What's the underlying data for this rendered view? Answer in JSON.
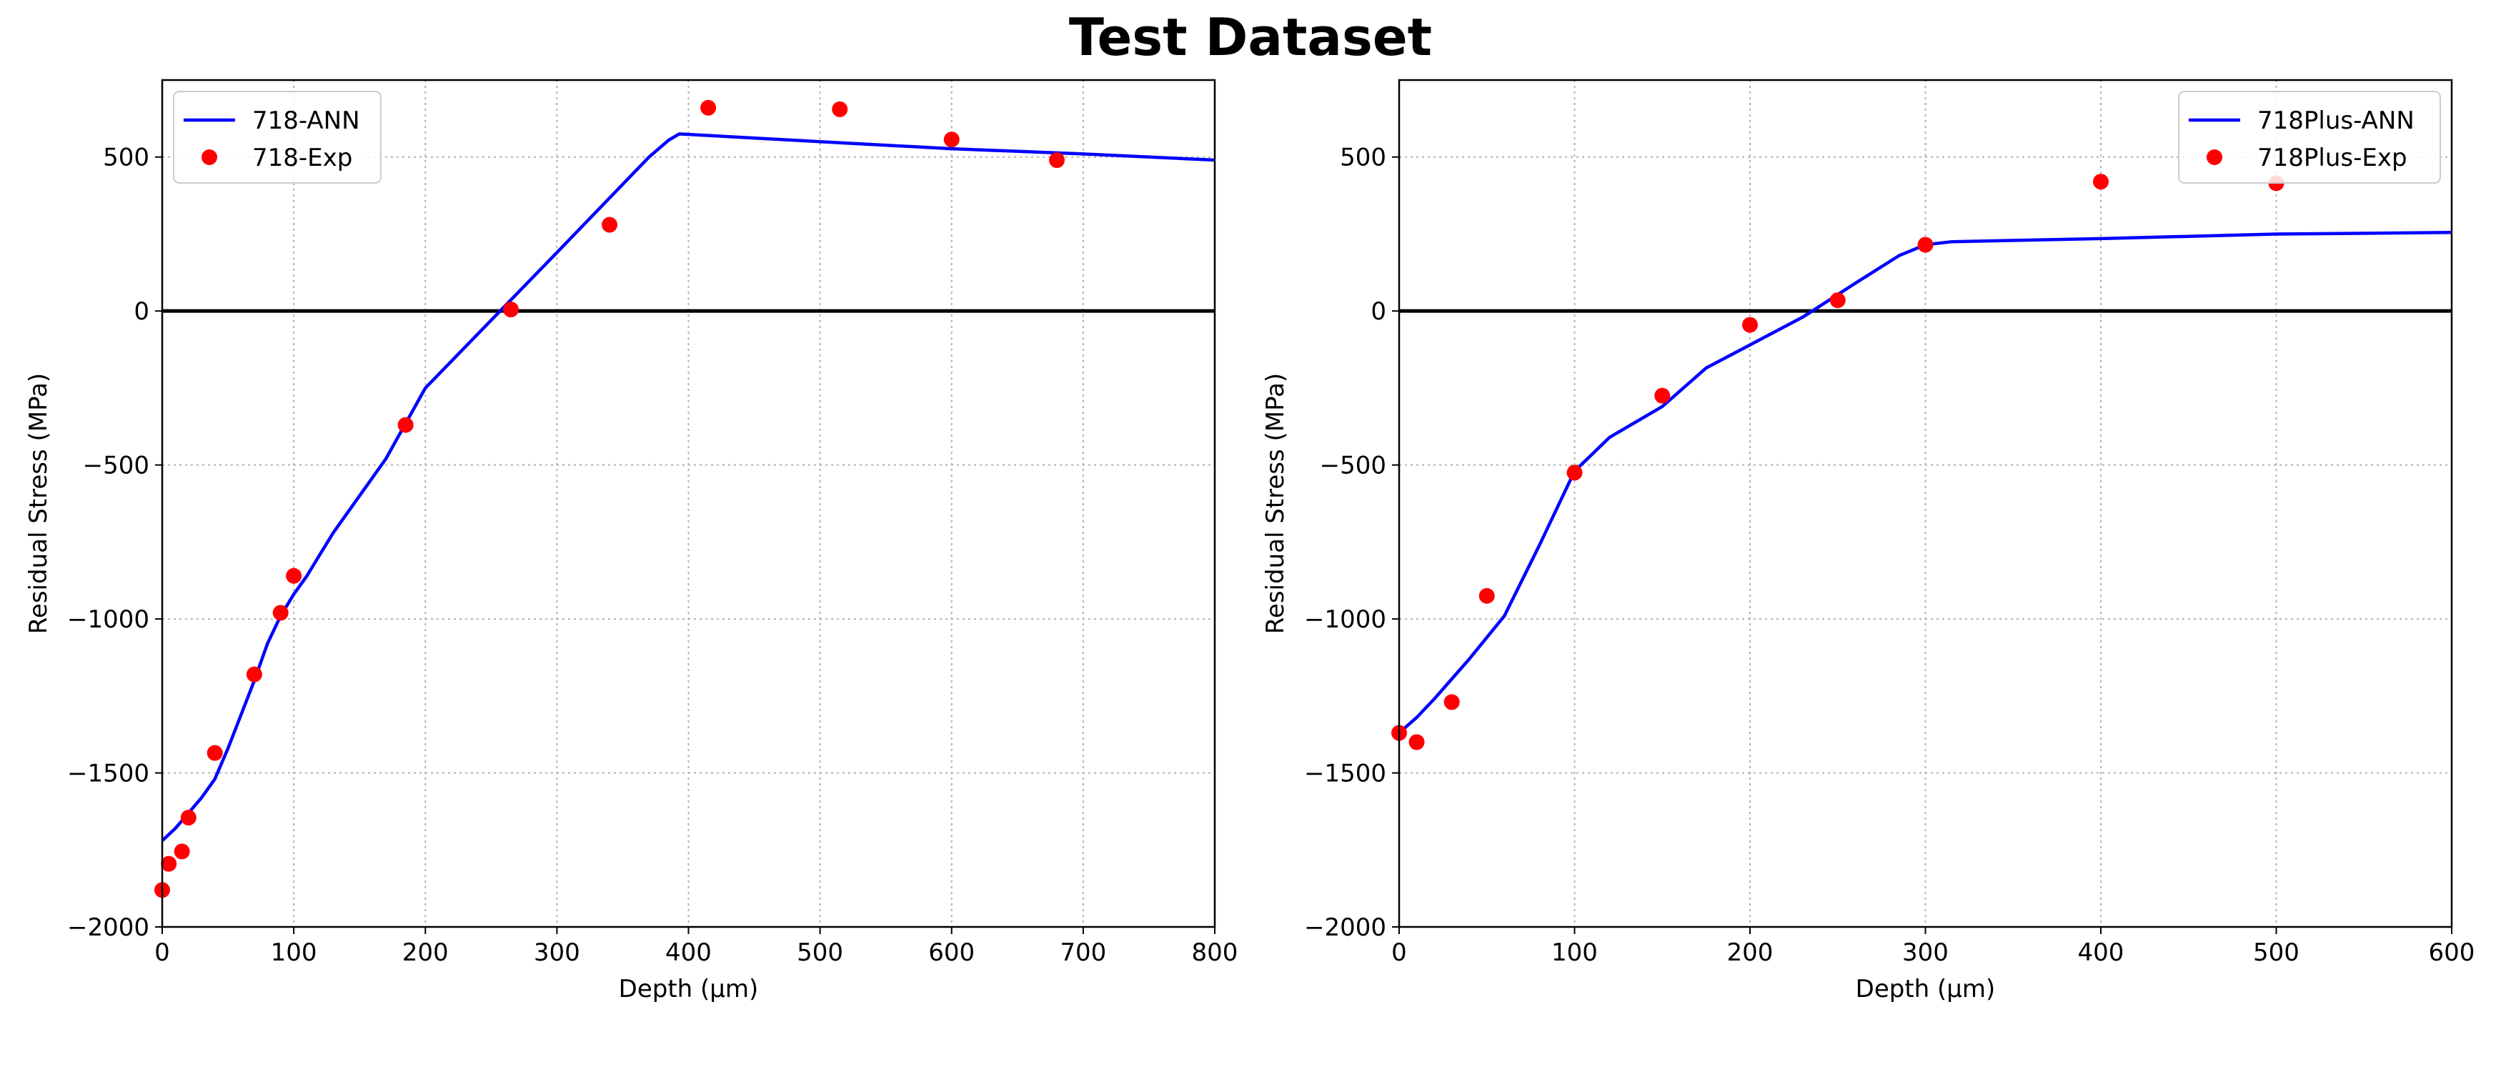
{
  "title": "Test Dataset",
  "colors": {
    "ann_line": "#0000ff",
    "exp_points": "#ff0000",
    "grid": "#b0b0b0",
    "zero_line": "#000000"
  },
  "chart_data": [
    {
      "type": "line",
      "xlabel": "Depth (μm)",
      "ylabel": "Residual Stress (MPa)",
      "xlim": [
        0,
        800
      ],
      "ylim": [
        -2000,
        750
      ],
      "xticks": [
        0,
        100,
        200,
        300,
        400,
        500,
        600,
        700,
        800
      ],
      "yticks": [
        -2000,
        -1500,
        -1000,
        -500,
        0,
        500
      ],
      "grid": true,
      "legend_position": "top-left",
      "series": [
        {
          "name": "718-ANN",
          "kind": "line",
          "color": "#0000ff",
          "x": [
            0,
            10,
            20,
            30,
            40,
            50,
            60,
            70,
            80,
            90,
            100,
            110,
            120,
            130,
            150,
            170,
            200,
            300,
            370,
            385,
            393,
            500,
            600,
            700,
            800
          ],
          "y": [
            -1720,
            -1680,
            -1630,
            -1580,
            -1520,
            -1420,
            -1310,
            -1200,
            -1080,
            -990,
            -920,
            -860,
            -790,
            -720,
            -600,
            -480,
            -250,
            190,
            500,
            555,
            575,
            550,
            527,
            510,
            490
          ]
        },
        {
          "name": "718-Exp",
          "kind": "scatter",
          "color": "#ff0000",
          "x": [
            0,
            5,
            15,
            20,
            40,
            70,
            90,
            100,
            185,
            265,
            340,
            415,
            515,
            600,
            680
          ],
          "y": [
            -1880,
            -1795,
            -1755,
            -1645,
            -1435,
            -1180,
            -980,
            -860,
            -370,
            5,
            280,
            660,
            655,
            557,
            490
          ]
        }
      ]
    },
    {
      "type": "line",
      "xlabel": "Depth (μm)",
      "ylabel": "Residual Stress (MPa)",
      "xlim": [
        0,
        600
      ],
      "ylim": [
        -2000,
        750
      ],
      "xticks": [
        0,
        100,
        200,
        300,
        400,
        500,
        600
      ],
      "yticks": [
        -2000,
        -1500,
        -1000,
        -500,
        0,
        500
      ],
      "grid": true,
      "legend_position": "top-right",
      "series": [
        {
          "name": "718Plus-ANN",
          "kind": "line",
          "color": "#0000ff",
          "x": [
            0,
            10,
            20,
            40,
            60,
            80,
            100,
            120,
            150,
            175,
            200,
            230,
            260,
            285,
            300,
            315,
            400,
            500,
            600
          ],
          "y": [
            -1370,
            -1320,
            -1260,
            -1130,
            -990,
            -760,
            -520,
            -410,
            -310,
            -185,
            -110,
            -20,
            90,
            180,
            215,
            225,
            235,
            250,
            255
          ]
        },
        {
          "name": "718Plus-Exp",
          "kind": "scatter",
          "color": "#ff0000",
          "x": [
            0,
            10,
            30,
            50,
            100,
            150,
            200,
            250,
            300,
            400,
            500
          ],
          "y": [
            -1370,
            -1400,
            -1270,
            -925,
            -525,
            -275,
            -45,
            35,
            215,
            420,
            415
          ]
        }
      ]
    }
  ]
}
